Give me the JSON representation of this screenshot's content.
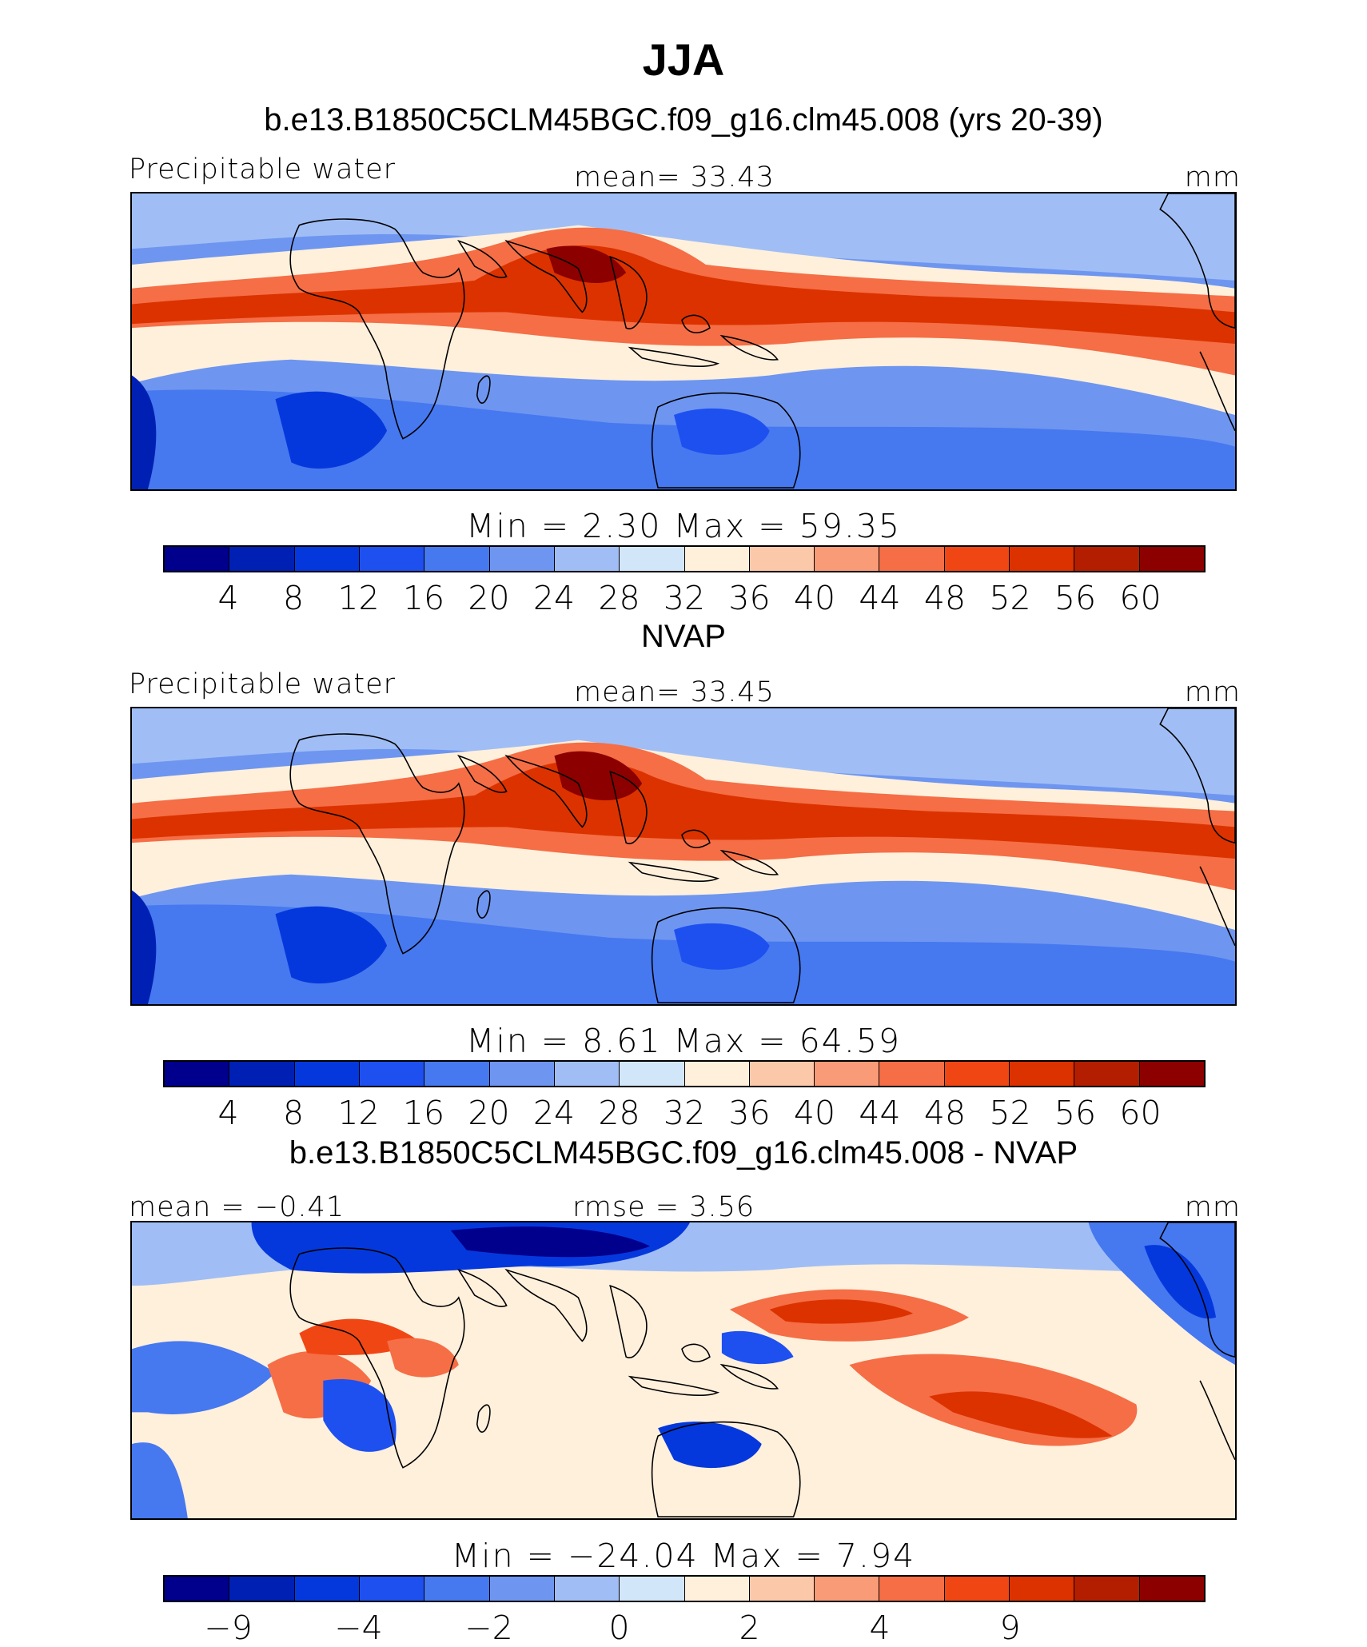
{
  "title": "JJA",
  "palette": [
    "#00008c",
    "#0020b4",
    "#0538dc",
    "#1e50f0",
    "#4678f0",
    "#6e96f0",
    "#a0bef5",
    "#d2e6fa",
    "#fff0dc",
    "#fcc8aa",
    "#fa9b78",
    "#f56e46",
    "#f04614",
    "#dc3200",
    "#b41e00",
    "#8c0000"
  ],
  "chart_data": [
    {
      "type": "heatmap",
      "panel": "model",
      "subtitle": "b.e13.B1850C5CLM45BGC.f09_g16.clm45.008 (yrs 20-39)",
      "left_label": "Precipitable water",
      "center_label": "mean=  33.43",
      "units": "mm",
      "minmax_text": "Min =    2.30  Max =   59.35",
      "min": 2.3,
      "max": 59.35,
      "mean": 33.43,
      "colorbar_ticks": [
        "4",
        "8",
        "12",
        "16",
        "20",
        "24",
        "28",
        "32",
        "36",
        "40",
        "44",
        "48",
        "52",
        "56",
        "60"
      ]
    },
    {
      "type": "heatmap",
      "panel": "observations",
      "subtitle": "NVAP",
      "left_label": "Precipitable water",
      "center_label": "mean=  33.45",
      "units": "mm",
      "minmax_text": "Min =    8.61  Max =   64.59",
      "min": 8.61,
      "max": 64.59,
      "mean": 33.45,
      "colorbar_ticks": [
        "4",
        "8",
        "12",
        "16",
        "20",
        "24",
        "28",
        "32",
        "36",
        "40",
        "44",
        "48",
        "52",
        "56",
        "60"
      ]
    },
    {
      "type": "heatmap",
      "panel": "difference",
      "subtitle": "b.e13.B1850C5CLM45BGC.f09_g16.clm45.008 - NVAP",
      "left_label": "mean =  −0.41",
      "center_label": "rmse =    3.56",
      "units": "mm",
      "minmax_text": "Min = −24.04  Max =    7.94",
      "min": -24.04,
      "max": 7.94,
      "mean": -0.41,
      "rmse": 3.56,
      "colorbar_ticks": [
        "−9",
        "−4",
        "−2",
        "0",
        "2",
        "4",
        "9"
      ]
    }
  ]
}
